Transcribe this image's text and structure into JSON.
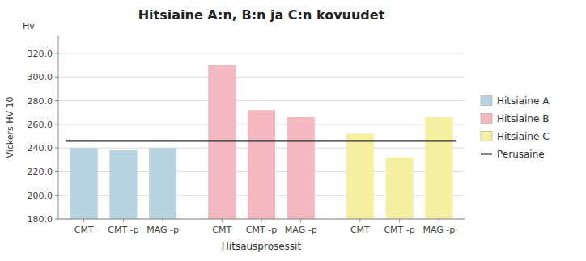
{
  "chart_data": {
    "type": "bar",
    "title": "Hitsiaine A:n, B:n ja C:n kovuudet",
    "x_label": "Hitsausprosessit",
    "y_label": "Vickers HV 10",
    "annotations": [
      "Hv"
    ],
    "categories": [
      "CMT",
      "CMT -p",
      "MAG -p",
      "CMT",
      "CMT -p",
      "MAG -p",
      "CMT",
      "CMT -p",
      "MAG -p"
    ],
    "series": [
      {
        "name": "Hitsiaine A",
        "color": "#b8d4e0",
        "values": [
          240.0,
          238.0,
          240.0,
          null,
          null,
          null,
          null,
          null,
          null
        ]
      },
      {
        "name": "Hitsiaine B",
        "color": "#f4b8c0",
        "values": [
          null,
          null,
          null,
          310.0,
          272.0,
          266.0,
          null,
          null,
          null
        ]
      },
      {
        "name": "Hitsiaine C",
        "color": "#f4f0a0",
        "values": [
          null,
          null,
          null,
          null,
          null,
          null,
          252.0,
          232.0,
          266.0
        ]
      }
    ],
    "reference_lines": [
      {
        "name": "Perusaine",
        "value": 246.0,
        "color": "#333333"
      }
    ],
    "ylim": [
      180.0,
      335.0
    ],
    "yticks": [
      {
        "value": 180.0,
        "label": "180.0"
      },
      {
        "value": 200.0,
        "label": "200.0"
      },
      {
        "value": 220.0,
        "label": "220.0"
      },
      {
        "value": 240.0,
        "label": "240.0"
      },
      {
        "value": 260.0,
        "label": "260.0"
      },
      {
        "value": 280.0,
        "label": "280.0"
      },
      {
        "value": 300.0,
        "label": "300.0"
      },
      {
        "value": 320.0,
        "label": "320.0"
      }
    ],
    "grid": true,
    "legend": "right"
  }
}
